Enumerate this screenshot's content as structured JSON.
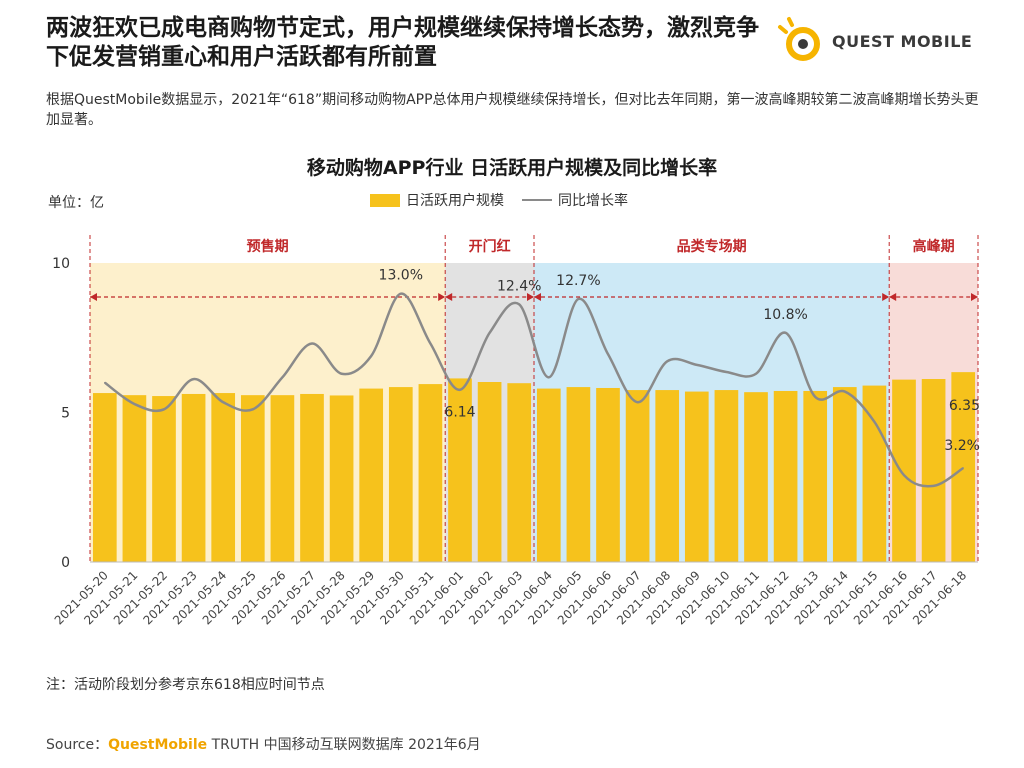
{
  "header": {
    "title": "两波狂欢已成电商购物节定式，用户规模继续保持增长态势，激烈竞争下促发营销重心和用户活跃都有所前置",
    "logo_text": "QUEST MOBILE"
  },
  "summary": "根据QuestMobile数据显示，2021年“618”期间移动购物APP总体用户规模继续保持增长，但对比去年同期，第一波高峰期较第二波高峰期增长势头更加显著。",
  "note": "注：活动阶段划分参考京东618相应时间节点",
  "source": {
    "prefix": "Source：",
    "brand": "QuestMobile",
    "rest": " TRUTH 中国移动互联网数据库 2021年6月"
  },
  "colors": {
    "bar": "#f6c21c",
    "line": "#8a8a8a",
    "accent": "#c0282a"
  },
  "chart_data": {
    "type": "bar",
    "title": "移动购物APP行业 日活跃用户规模及同比增长率",
    "unit_label": "单位：亿",
    "ylim": [
      0,
      10
    ],
    "yticks": [
      0,
      5,
      10
    ],
    "categories": [
      "2021-05-20",
      "2021-05-21",
      "2021-05-22",
      "2021-05-23",
      "2021-05-24",
      "2021-05-25",
      "2021-05-26",
      "2021-05-27",
      "2021-05-28",
      "2021-05-29",
      "2021-05-30",
      "2021-05-31",
      "2021-06-01",
      "2021-06-02",
      "2021-06-03",
      "2021-06-04",
      "2021-06-05",
      "2021-06-06",
      "2021-06-07",
      "2021-06-08",
      "2021-06-09",
      "2021-06-10",
      "2021-06-11",
      "2021-06-12",
      "2021-06-13",
      "2021-06-14",
      "2021-06-15",
      "2021-06-16",
      "2021-06-17",
      "2021-06-18"
    ],
    "series": [
      {
        "name": "日活跃用户规模",
        "type": "bar",
        "values": [
          5.65,
          5.58,
          5.55,
          5.62,
          5.65,
          5.58,
          5.58,
          5.62,
          5.57,
          5.8,
          5.85,
          5.95,
          6.14,
          6.02,
          5.98,
          5.8,
          5.85,
          5.82,
          5.75,
          5.75,
          5.7,
          5.75,
          5.68,
          5.72,
          5.72,
          5.85,
          5.9,
          6.1,
          6.12,
          6.35
        ]
      },
      {
        "name": "同比增长率",
        "type": "line",
        "unit": "%",
        "values": [
          8.0,
          6.8,
          6.5,
          8.2,
          6.9,
          6.5,
          8.3,
          10.2,
          8.5,
          9.5,
          13.0,
          10.2,
          7.6,
          10.8,
          12.4,
          8.3,
          12.7,
          9.6,
          6.9,
          9.2,
          9.0,
          8.6,
          8.5,
          10.8,
          7.2,
          7.5,
          5.8,
          2.8,
          2.2,
          3.2
        ]
      }
    ],
    "data_labels": [
      {
        "series": 1,
        "index": 10,
        "text": "13.0%"
      },
      {
        "series": 1,
        "index": 14,
        "text": "12.4%"
      },
      {
        "series": 1,
        "index": 16,
        "text": "12.7%"
      },
      {
        "series": 1,
        "index": 23,
        "text": "10.8%"
      },
      {
        "series": 1,
        "index": 29,
        "text": "3.2%"
      },
      {
        "series": 0,
        "index": 12,
        "text": "6.14"
      },
      {
        "series": 0,
        "index": 29,
        "text": "6.35"
      }
    ],
    "phases": [
      {
        "name": "预售期",
        "start": 0,
        "end": 11,
        "color": "#fdf0cc"
      },
      {
        "name": "开门红",
        "start": 12,
        "end": 14,
        "color": "#e2e2e2"
      },
      {
        "name": "品类专场期",
        "start": 15,
        "end": 26,
        "color": "#cde9f6"
      },
      {
        "name": "高峰期",
        "start": 27,
        "end": 29,
        "color": "#f8dcd8"
      }
    ],
    "legend": [
      "日活跃用户规模",
      "同比增长率"
    ],
    "legend_position": "top-center",
    "grid": false
  }
}
